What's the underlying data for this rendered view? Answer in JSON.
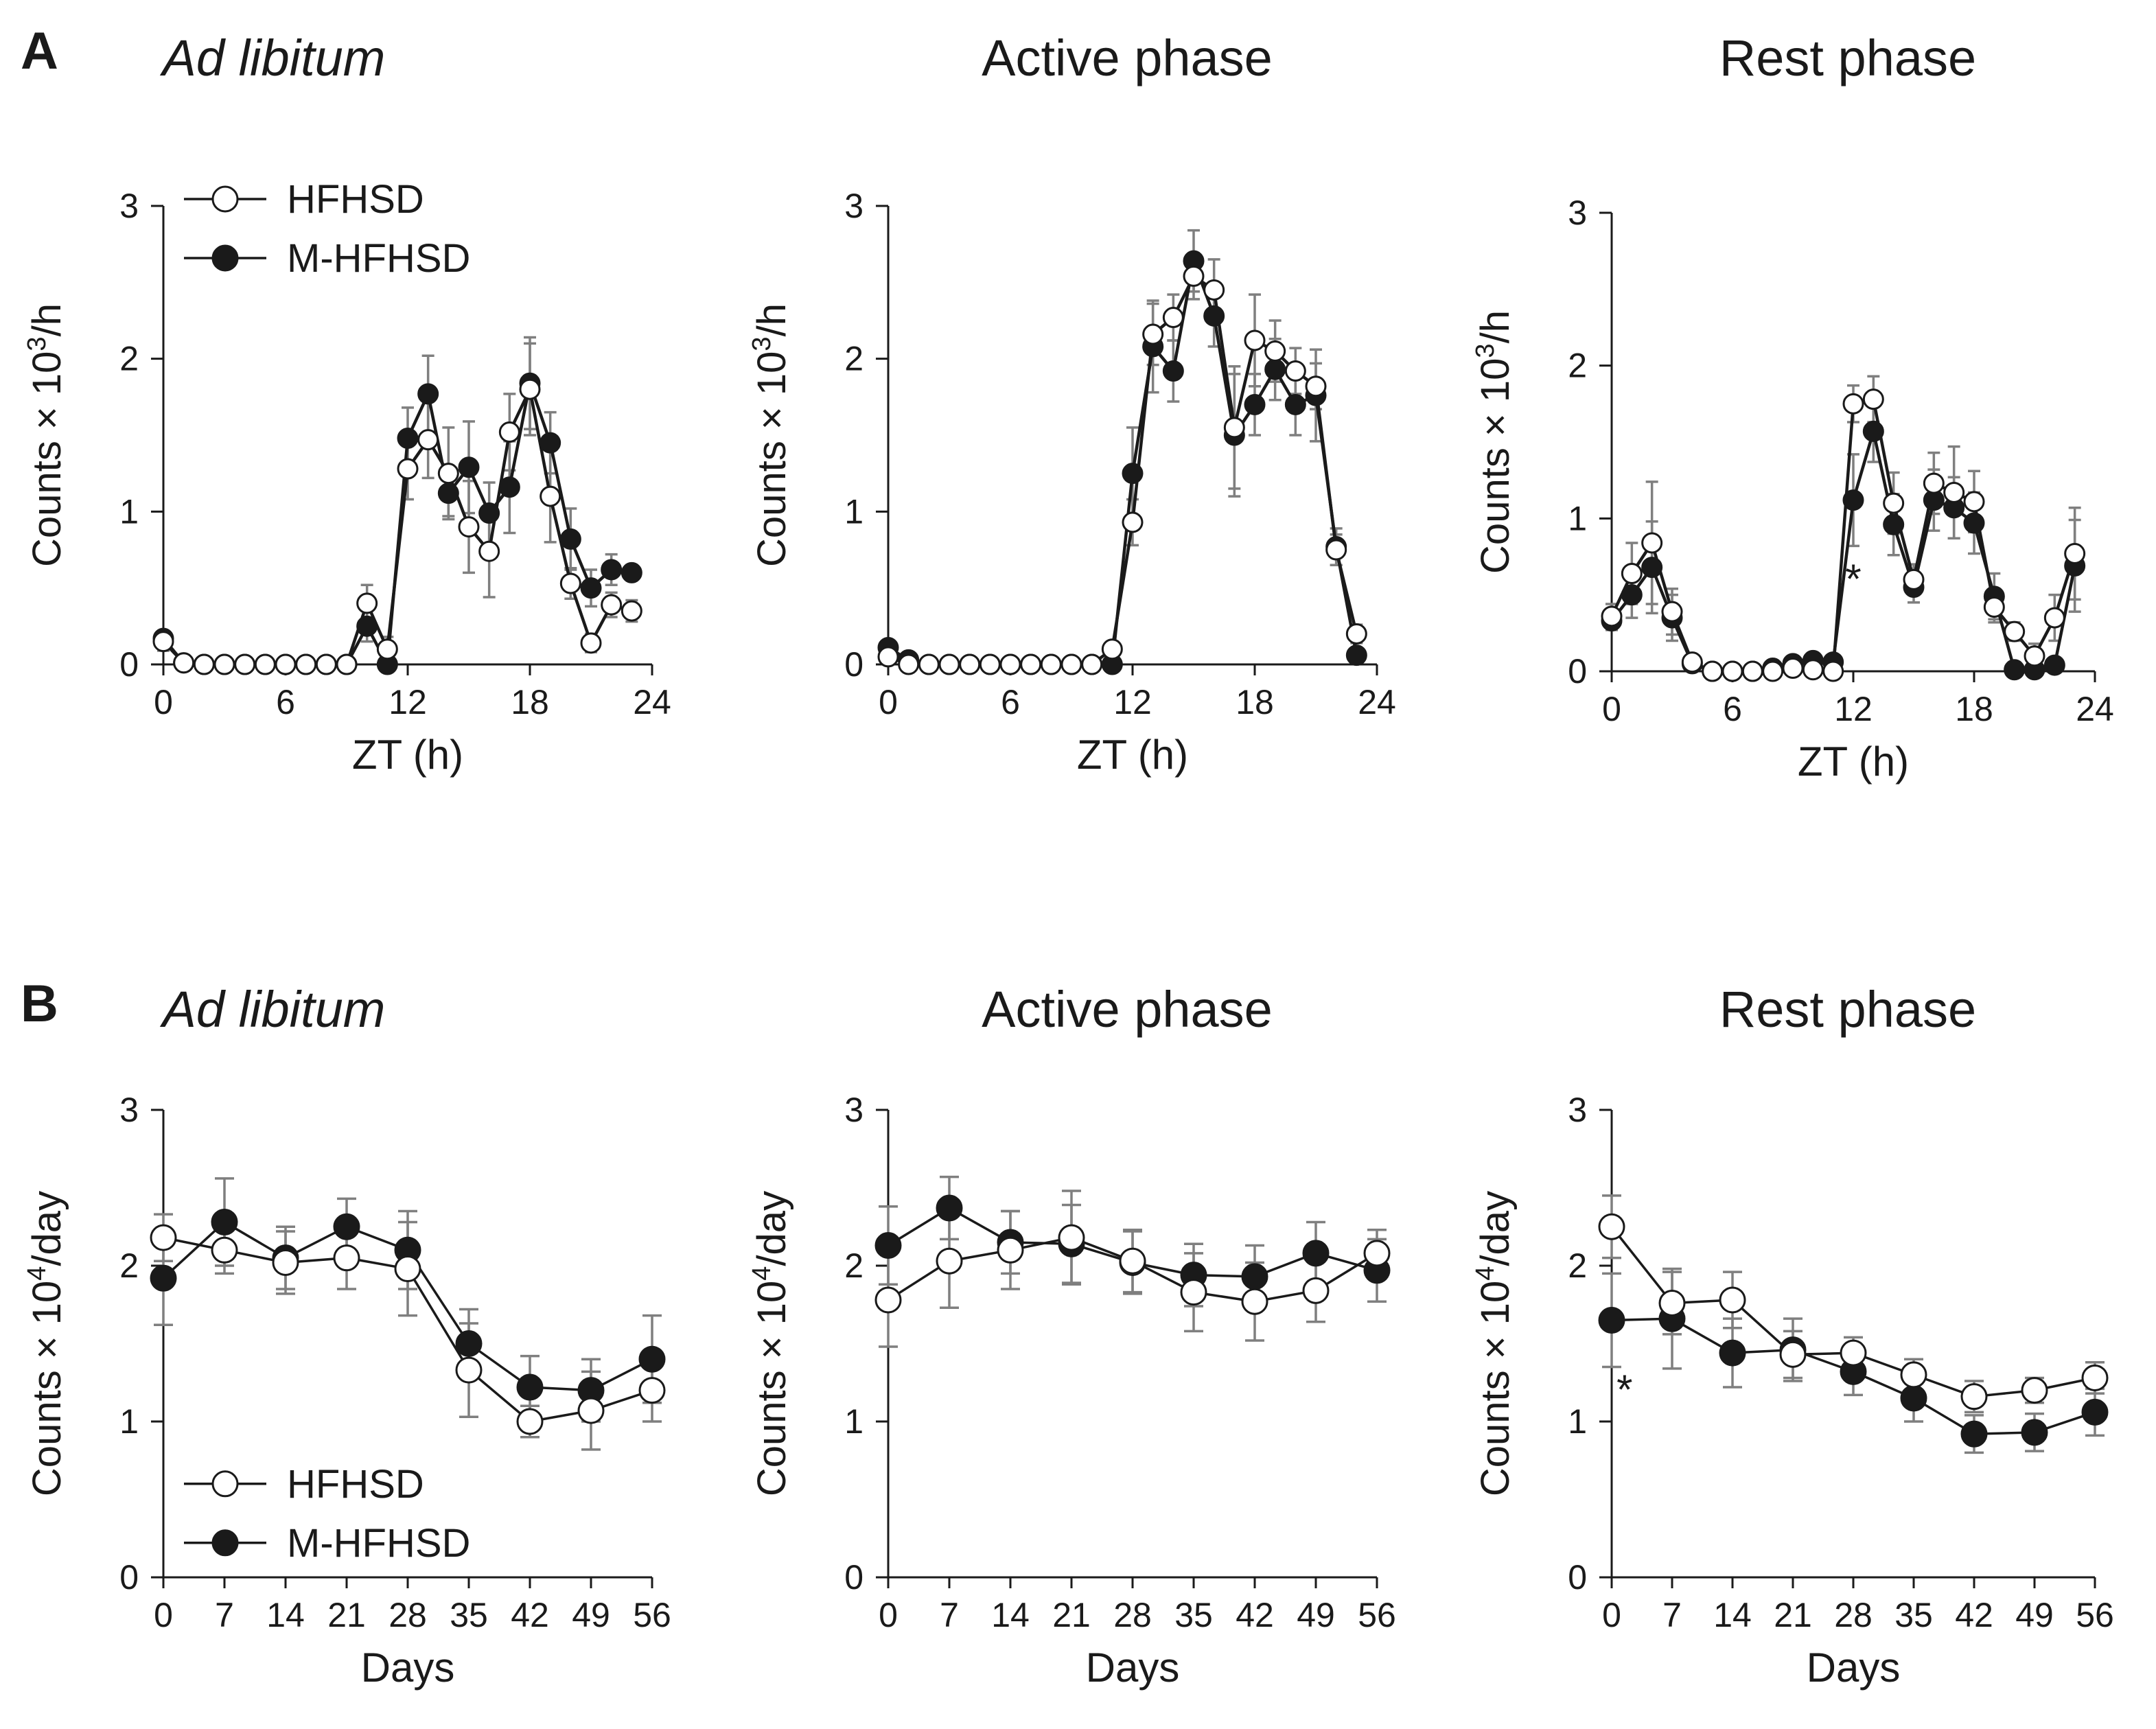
{
  "figure": {
    "panel_labels": [
      "A",
      "B"
    ],
    "legend_labels": [
      "HFHSD",
      "M-HFHSD"
    ],
    "colors": {
      "axis": "#1a1a1a",
      "errorbar": "#7f7f7f",
      "line": "#1a1a1a",
      "open_fill": "#ffffff",
      "filled": "#1a1a1a"
    }
  },
  "chart_data": [
    {
      "id": "A-adlib",
      "type": "line",
      "title": "Ad libitum",
      "title_italic": true,
      "xlabel": "ZT (h)",
      "ylabel_prefix": "Counts × 10",
      "ylabel_exp": "3",
      "ylabel_suffix": "/h",
      "xlim": [
        0,
        24
      ],
      "ylim": [
        0,
        3
      ],
      "xticks": [
        0,
        6,
        12,
        18,
        24
      ],
      "yticks": [
        0,
        1,
        2,
        3
      ],
      "legend": "top-left",
      "annotations": [],
      "x": [
        0,
        1,
        2,
        3,
        4,
        5,
        6,
        7,
        8,
        9,
        10,
        11,
        12,
        13,
        14,
        15,
        16,
        17,
        18,
        19,
        20,
        21,
        22,
        23
      ],
      "series": [
        {
          "name": "HFHSD",
          "marker": "open",
          "values": [
            0.15,
            0.01,
            0,
            0,
            0,
            0,
            0,
            0,
            0,
            0,
            0.4,
            0.1,
            1.28,
            1.47,
            1.25,
            0.9,
            0.74,
            1.52,
            1.8,
            1.1,
            0.53,
            0.14,
            0.39,
            0.35
          ],
          "errors": [
            0.06,
            0.01,
            0,
            0,
            0,
            0,
            0,
            0,
            0,
            0,
            0.12,
            0.08,
            0.2,
            0.25,
            0.3,
            0.3,
            0.3,
            0.25,
            0.3,
            0.3,
            0.1,
            0.06,
            0.08,
            0.07
          ]
        },
        {
          "name": "M-HFHSD",
          "marker": "filled",
          "values": [
            0.17,
            0.01,
            0,
            0,
            0,
            0,
            0,
            0,
            0,
            0,
            0.25,
            0,
            1.48,
            1.77,
            1.12,
            1.29,
            0.99,
            1.16,
            1.84,
            1.45,
            0.82,
            0.5,
            0.62,
            0.6
          ],
          "errors": [
            0.05,
            0.01,
            0,
            0,
            0,
            0,
            0,
            0,
            0,
            0,
            0.1,
            0.02,
            0.2,
            0.25,
            0.15,
            0.3,
            0.2,
            0.3,
            0.3,
            0.2,
            0.2,
            0.12,
            0.1,
            0.05
          ]
        }
      ]
    },
    {
      "id": "A-active",
      "type": "line",
      "title": "Active phase",
      "title_italic": false,
      "xlabel": "ZT (h)",
      "ylabel_prefix": "Counts × 10",
      "ylabel_exp": "3",
      "ylabel_suffix": "/h",
      "xlim": [
        0,
        24
      ],
      "ylim": [
        0,
        3
      ],
      "xticks": [
        0,
        6,
        12,
        18,
        24
      ],
      "yticks": [
        0,
        1,
        2,
        3
      ],
      "legend": "none",
      "annotations": [],
      "x": [
        0,
        1,
        2,
        3,
        4,
        5,
        6,
        7,
        8,
        9,
        10,
        11,
        12,
        13,
        14,
        15,
        16,
        17,
        18,
        19,
        20,
        21,
        22,
        23
      ],
      "series": [
        {
          "name": "HFHSD",
          "marker": "open",
          "values": [
            0.05,
            0,
            0,
            0,
            0,
            0,
            0,
            0,
            0,
            0,
            0,
            0.1,
            0.93,
            2.16,
            2.27,
            2.54,
            2.45,
            1.55,
            2.12,
            2.05,
            1.92,
            1.82,
            0.75,
            0.2
          ],
          "errors": [
            0.03,
            0,
            0,
            0,
            0,
            0,
            0,
            0,
            0,
            0,
            0,
            0.05,
            0.15,
            0.2,
            0.15,
            0.15,
            0.2,
            0.4,
            0.3,
            0.2,
            0.15,
            0.15,
            0.1,
            0.06
          ]
        },
        {
          "name": "M-HFHSD",
          "marker": "filled",
          "values": [
            0.11,
            0.03,
            0,
            0,
            0,
            0,
            0,
            0,
            0,
            0,
            0,
            0,
            1.25,
            2.08,
            1.92,
            2.64,
            2.28,
            1.5,
            1.7,
            1.93,
            1.7,
            1.76,
            0.77,
            0.06
          ],
          "errors": [
            0.04,
            0.02,
            0,
            0,
            0,
            0,
            0,
            0,
            0,
            0,
            0,
            0,
            0.3,
            0.3,
            0.2,
            0.2,
            0.2,
            0.4,
            0.2,
            0.2,
            0.2,
            0.3,
            0.12,
            0.04
          ]
        }
      ]
    },
    {
      "id": "A-rest",
      "type": "line",
      "title": "Rest phase",
      "title_italic": false,
      "xlabel": "ZT (h)",
      "ylabel_prefix": "Counts × 10",
      "ylabel_exp": "3",
      "ylabel_suffix": "/h",
      "xlim": [
        0,
        24
      ],
      "ylim": [
        0,
        3
      ],
      "xticks": [
        0,
        6,
        12,
        18,
        24
      ],
      "yticks": [
        0,
        1,
        2,
        3
      ],
      "legend": "none",
      "annotations": [
        {
          "text": "*",
          "x": 12,
          "y": 0.62
        }
      ],
      "x": [
        0,
        1,
        2,
        3,
        4,
        5,
        6,
        7,
        8,
        9,
        10,
        11,
        12,
        13,
        14,
        15,
        16,
        17,
        18,
        19,
        20,
        21,
        22,
        23
      ],
      "series": [
        {
          "name": "HFHSD",
          "marker": "open",
          "values": [
            0.36,
            0.64,
            0.84,
            0.39,
            0.06,
            0,
            0,
            0,
            0,
            0.02,
            0.01,
            0,
            1.75,
            1.78,
            1.1,
            0.6,
            1.23,
            1.17,
            1.11,
            0.42,
            0.26,
            0.1,
            0.35,
            0.77
          ],
          "errors": [
            0.08,
            0.2,
            0.4,
            0.15,
            0.04,
            0,
            0,
            0,
            0,
            0.04,
            0.03,
            0,
            0.12,
            0.15,
            0.2,
            0.1,
            0.2,
            0.3,
            0.2,
            0.1,
            0.06,
            0.08,
            0.15,
            0.3
          ]
        },
        {
          "name": "M-HFHSD",
          "marker": "filled",
          "values": [
            0.33,
            0.5,
            0.68,
            0.35,
            0.05,
            0,
            0,
            0,
            0.02,
            0.05,
            0.07,
            0.06,
            1.12,
            1.57,
            0.96,
            0.55,
            1.12,
            1.07,
            0.97,
            0.49,
            0.01,
            0.01,
            0.04,
            0.69
          ],
          "errors": [
            0.06,
            0.15,
            0.3,
            0.15,
            0.04,
            0,
            0,
            0,
            0.03,
            0.05,
            0.05,
            0.04,
            0.3,
            0.2,
            0.2,
            0.1,
            0.2,
            0.2,
            0.2,
            0.15,
            0.02,
            0.02,
            0.05,
            0.3
          ]
        }
      ]
    },
    {
      "id": "B-adlib",
      "type": "line",
      "title": "Ad libitum",
      "title_italic": true,
      "xlabel": "Days",
      "ylabel_prefix": "Counts × 10",
      "ylabel_exp": "4",
      "ylabel_suffix": "/day",
      "xlim": [
        0,
        56
      ],
      "ylim": [
        0,
        3
      ],
      "xticks": [
        0,
        7,
        14,
        21,
        28,
        35,
        42,
        49,
        56
      ],
      "yticks": [
        0,
        1,
        2,
        3
      ],
      "legend": "bottom-left",
      "annotations": [],
      "x": [
        0,
        7,
        14,
        21,
        28,
        35,
        42,
        49,
        56
      ],
      "series": [
        {
          "name": "HFHSD",
          "marker": "open",
          "values": [
            2.18,
            2.1,
            2.02,
            2.05,
            1.98,
            1.33,
            1.0,
            1.07,
            1.2
          ],
          "errors": [
            0.15,
            0.15,
            0.2,
            0.2,
            0.3,
            0.3,
            0.1,
            0.25,
            0.2
          ]
        },
        {
          "name": "M-HFHSD",
          "marker": "filled",
          "values": [
            1.92,
            2.28,
            2.05,
            2.25,
            2.1,
            1.5,
            1.22,
            1.2,
            1.4
          ],
          "errors": [
            0.3,
            0.28,
            0.2,
            0.18,
            0.25,
            0.22,
            0.2,
            0.2,
            0.28
          ]
        }
      ]
    },
    {
      "id": "B-active",
      "type": "line",
      "title": "Active phase",
      "title_italic": false,
      "xlabel": "Days",
      "ylabel_prefix": "Counts × 10",
      "ylabel_exp": "4",
      "ylabel_suffix": "/day",
      "xlim": [
        0,
        56
      ],
      "ylim": [
        0,
        3
      ],
      "xticks": [
        0,
        7,
        14,
        21,
        28,
        35,
        42,
        49,
        56
      ],
      "yticks": [
        0,
        1,
        2,
        3
      ],
      "legend": "none",
      "annotations": [],
      "x": [
        0,
        7,
        14,
        21,
        28,
        35,
        42,
        49,
        56
      ],
      "series": [
        {
          "name": "HFHSD",
          "marker": "open",
          "values": [
            1.78,
            2.03,
            2.1,
            2.18,
            2.03,
            1.83,
            1.77,
            1.84,
            2.08
          ],
          "errors": [
            0.3,
            0.3,
            0.25,
            0.3,
            0.2,
            0.25,
            0.25,
            0.2,
            0.15
          ]
        },
        {
          "name": "M-HFHSD",
          "marker": "filled",
          "values": [
            2.13,
            2.37,
            2.15,
            2.14,
            2.02,
            1.94,
            1.93,
            2.08,
            1.97
          ],
          "errors": [
            0.25,
            0.2,
            0.2,
            0.25,
            0.2,
            0.2,
            0.2,
            0.2,
            0.2
          ]
        }
      ]
    },
    {
      "id": "B-rest",
      "type": "line",
      "title": "Rest phase",
      "title_italic": false,
      "xlabel": "Days",
      "ylabel_prefix": "Counts × 10",
      "ylabel_exp": "4",
      "ylabel_suffix": "/day",
      "xlim": [
        0,
        56
      ],
      "ylim": [
        0,
        3
      ],
      "xticks": [
        0,
        7,
        14,
        21,
        28,
        35,
        42,
        49,
        56
      ],
      "yticks": [
        0,
        1,
        2,
        3
      ],
      "legend": "none",
      "annotations": [
        {
          "text": "*",
          "x": 1.5,
          "y": 1.22
        }
      ],
      "x": [
        0,
        7,
        14,
        21,
        28,
        35,
        42,
        49,
        56
      ],
      "series": [
        {
          "name": "HFHSD",
          "marker": "open",
          "values": [
            2.25,
            1.76,
            1.78,
            1.43,
            1.44,
            1.3,
            1.16,
            1.2,
            1.28
          ],
          "errors": [
            0.2,
            0.2,
            0.18,
            0.15,
            0.1,
            0.1,
            0.1,
            0.08,
            0.1
          ]
        },
        {
          "name": "M-HFHSD",
          "marker": "filled",
          "values": [
            1.65,
            1.66,
            1.44,
            1.46,
            1.32,
            1.15,
            0.92,
            0.93,
            1.06
          ],
          "errors": [
            0.3,
            0.32,
            0.22,
            0.2,
            0.15,
            0.15,
            0.12,
            0.12,
            0.15
          ]
        }
      ]
    }
  ]
}
